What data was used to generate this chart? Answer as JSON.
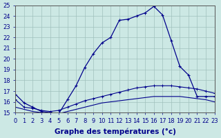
{
  "xlabel": "Graphe des températures (°c)",
  "xlim": [
    0,
    23
  ],
  "ylim": [
    15,
    25
  ],
  "yticks": [
    15,
    16,
    17,
    18,
    19,
    20,
    21,
    22,
    23,
    24,
    25
  ],
  "xticks": [
    0,
    1,
    2,
    3,
    4,
    5,
    6,
    7,
    8,
    9,
    10,
    11,
    12,
    13,
    14,
    15,
    16,
    17,
    18,
    19,
    20,
    21,
    22,
    23
  ],
  "bg_color": "#cce8e4",
  "line_color": "#00008b",
  "line1_x": [
    0,
    1,
    2,
    3,
    4,
    5,
    6,
    7,
    8,
    9,
    10,
    11,
    12,
    13,
    14,
    15,
    16,
    17,
    18,
    19,
    20,
    21,
    22,
    23
  ],
  "line1_y": [
    16.7,
    15.9,
    15.5,
    15.1,
    15.0,
    14.9,
    16.2,
    17.5,
    19.2,
    20.5,
    21.5,
    22.0,
    23.6,
    23.7,
    24.0,
    24.3,
    24.9,
    24.1,
    21.7,
    19.3,
    18.5,
    16.5,
    16.5,
    16.5
  ],
  "line2_x": [
    0,
    1,
    2,
    3,
    4,
    5,
    6,
    7,
    8,
    9,
    10,
    11,
    12,
    13,
    14,
    15,
    16,
    17,
    18,
    19,
    20,
    21,
    22,
    23
  ],
  "line2_y": [
    16.2,
    15.5,
    15.4,
    15.2,
    15.1,
    15.2,
    15.5,
    15.8,
    16.1,
    16.3,
    16.5,
    16.7,
    16.9,
    17.1,
    17.3,
    17.4,
    17.5,
    17.5,
    17.5,
    17.4,
    17.3,
    17.2,
    17.0,
    16.8
  ],
  "line3_x": [
    0,
    1,
    2,
    3,
    4,
    5,
    6,
    7,
    8,
    9,
    10,
    11,
    12,
    13,
    14,
    15,
    16,
    17,
    18,
    19,
    20,
    21,
    22,
    23
  ],
  "line3_y": [
    15.5,
    15.3,
    15.1,
    15.0,
    14.9,
    14.9,
    15.1,
    15.3,
    15.5,
    15.7,
    15.9,
    16.0,
    16.1,
    16.2,
    16.3,
    16.4,
    16.5,
    16.5,
    16.5,
    16.5,
    16.4,
    16.3,
    16.2,
    16.0
  ],
  "grid_color": "#a0c0bc",
  "xlabel_color": "#00008b",
  "tick_label_color": "#00008b",
  "axis_label_fontsize": 7.5,
  "tick_fontsize": 6
}
